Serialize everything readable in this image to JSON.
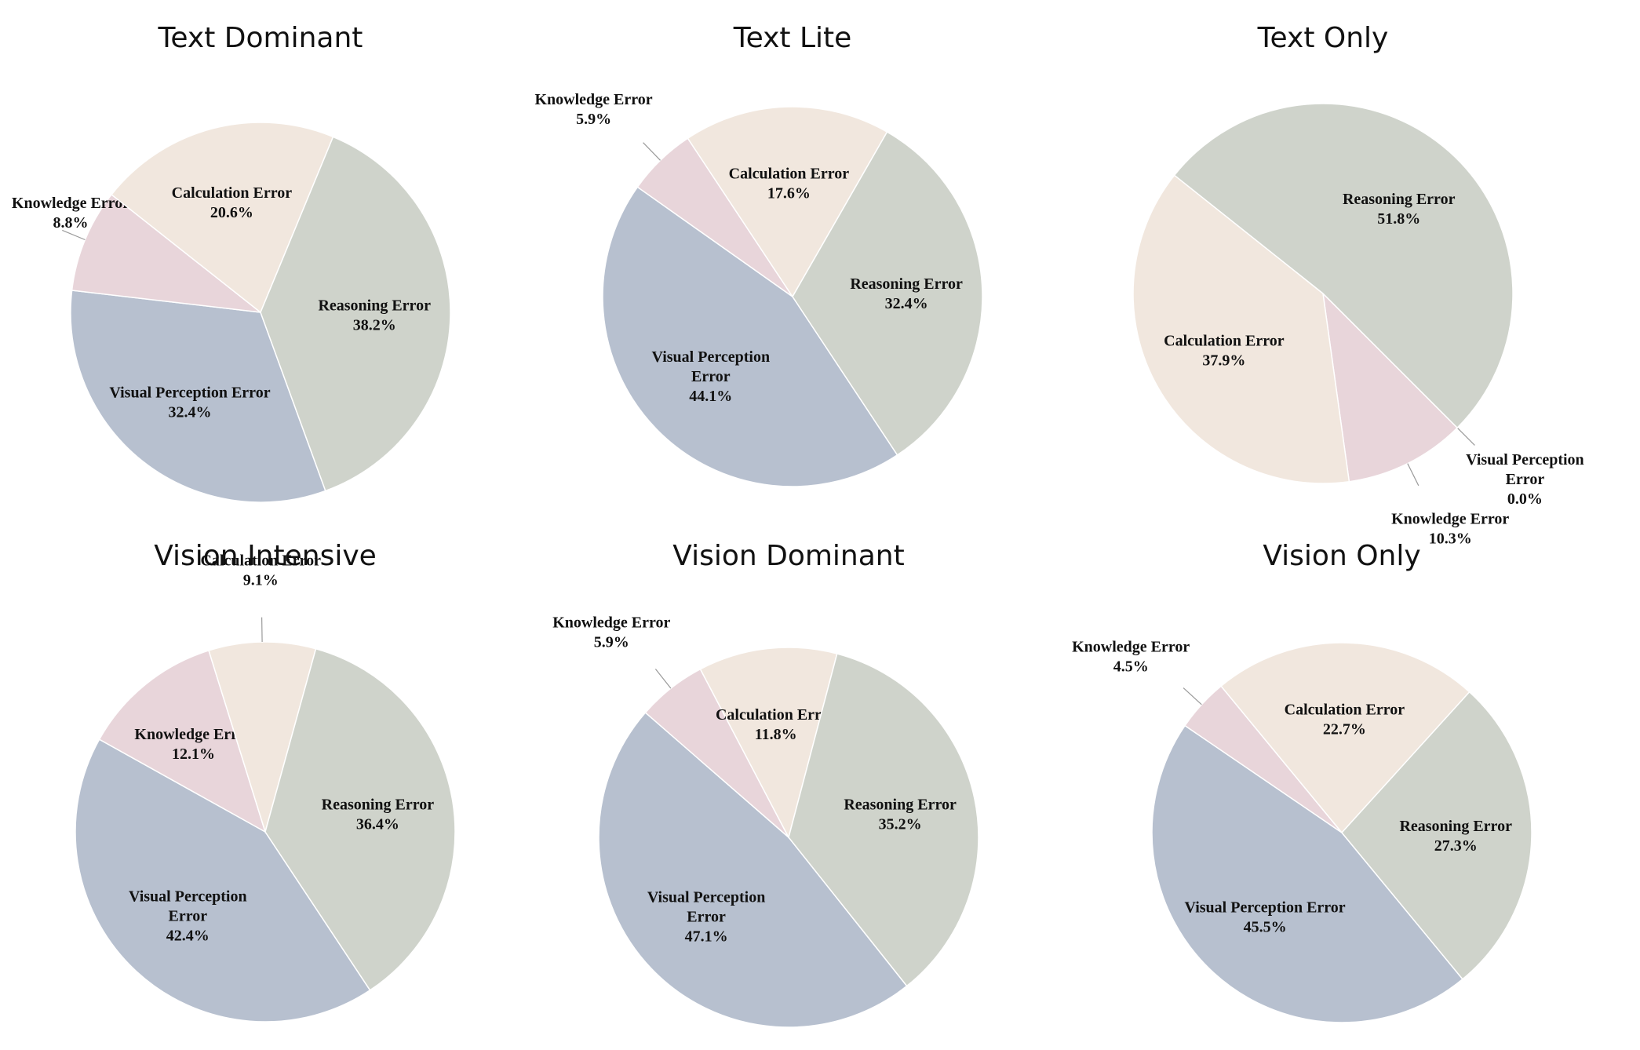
{
  "colors": {
    "Visual Perception Error": "#b7c0cf",
    "Knowledge Error": "#e8d5da",
    "Calculation Error": "#f1e7de",
    "Reasoning Error": "#cfd3cb"
  },
  "chart_data": [
    {
      "type": "pie",
      "title": "Text Dominant",
      "labels": [
        "Visual Perception Error",
        "Knowledge Error",
        "Calculation Error",
        "Reasoning Error"
      ],
      "values": [
        32.4,
        8.8,
        20.6,
        38.2
      ],
      "display": [
        [
          "Visual Perception Error",
          "32.4%"
        ],
        [
          "Knowledge Error",
          "8.8%"
        ],
        [
          "Calculation Error",
          "20.6%"
        ],
        [
          "Reasoning Error",
          "38.2%"
        ]
      ]
    },
    {
      "type": "pie",
      "title": "Text Lite",
      "labels": [
        "Visual Perception Error",
        "Knowledge Error",
        "Calculation Error",
        "Reasoning Error"
      ],
      "values": [
        44.1,
        5.9,
        17.6,
        32.4
      ],
      "display": [
        [
          "Visual Perception",
          "Error",
          "44.1%"
        ],
        [
          "Knowledge Error",
          "5.9%"
        ],
        [
          "Calculation Error",
          "17.6%"
        ],
        [
          "Reasoning Error",
          "32.4%"
        ]
      ]
    },
    {
      "type": "pie",
      "title": "Text Only",
      "labels": [
        "Visual Perception Error",
        "Knowledge Error",
        "Calculation Error",
        "Reasoning Error"
      ],
      "values": [
        0.0,
        10.3,
        37.9,
        51.8
      ],
      "display": [
        [
          "Visual Perception",
          "Error",
          "0.0%"
        ],
        [
          "Knowledge Error",
          "10.3%"
        ],
        [
          "Calculation Error",
          "37.9%"
        ],
        [
          "Reasoning Error",
          "51.8%"
        ]
      ]
    },
    {
      "type": "pie",
      "title": "Vision Intensive",
      "labels": [
        "Visual Perception Error",
        "Knowledge Error",
        "Calculation Error",
        "Reasoning Error"
      ],
      "values": [
        42.4,
        12.1,
        9.1,
        36.4
      ],
      "display": [
        [
          "Visual Perception",
          "Error",
          "42.4%"
        ],
        [
          "Knowledge Error",
          "12.1%"
        ],
        [
          "Calculation Error",
          "9.1%"
        ],
        [
          "Reasoning Error",
          "36.4%"
        ]
      ]
    },
    {
      "type": "pie",
      "title": "Vision Dominant",
      "labels": [
        "Visual Perception Error",
        "Knowledge Error",
        "Calculation Error",
        "Reasoning Error"
      ],
      "values": [
        47.1,
        5.9,
        11.8,
        35.2
      ],
      "display": [
        [
          "Visual Perception",
          "Error",
          "47.1%"
        ],
        [
          "Knowledge Error",
          "5.9%"
        ],
        [
          "Calculation Error",
          "11.8%"
        ],
        [
          "Reasoning Error",
          "35.2%"
        ]
      ]
    },
    {
      "type": "pie",
      "title": "Vision Only",
      "labels": [
        "Visual Perception Error",
        "Knowledge Error",
        "Calculation Error",
        "Reasoning Error"
      ],
      "values": [
        45.5,
        4.5,
        22.7,
        27.3
      ],
      "display": [
        [
          "Visual Perception Error",
          "45.5%"
        ],
        [
          "Knowledge Error",
          "4.5%"
        ],
        [
          "Calculation Error",
          "22.7%"
        ],
        [
          "Reasoning Error",
          "27.3%"
        ]
      ]
    }
  ]
}
